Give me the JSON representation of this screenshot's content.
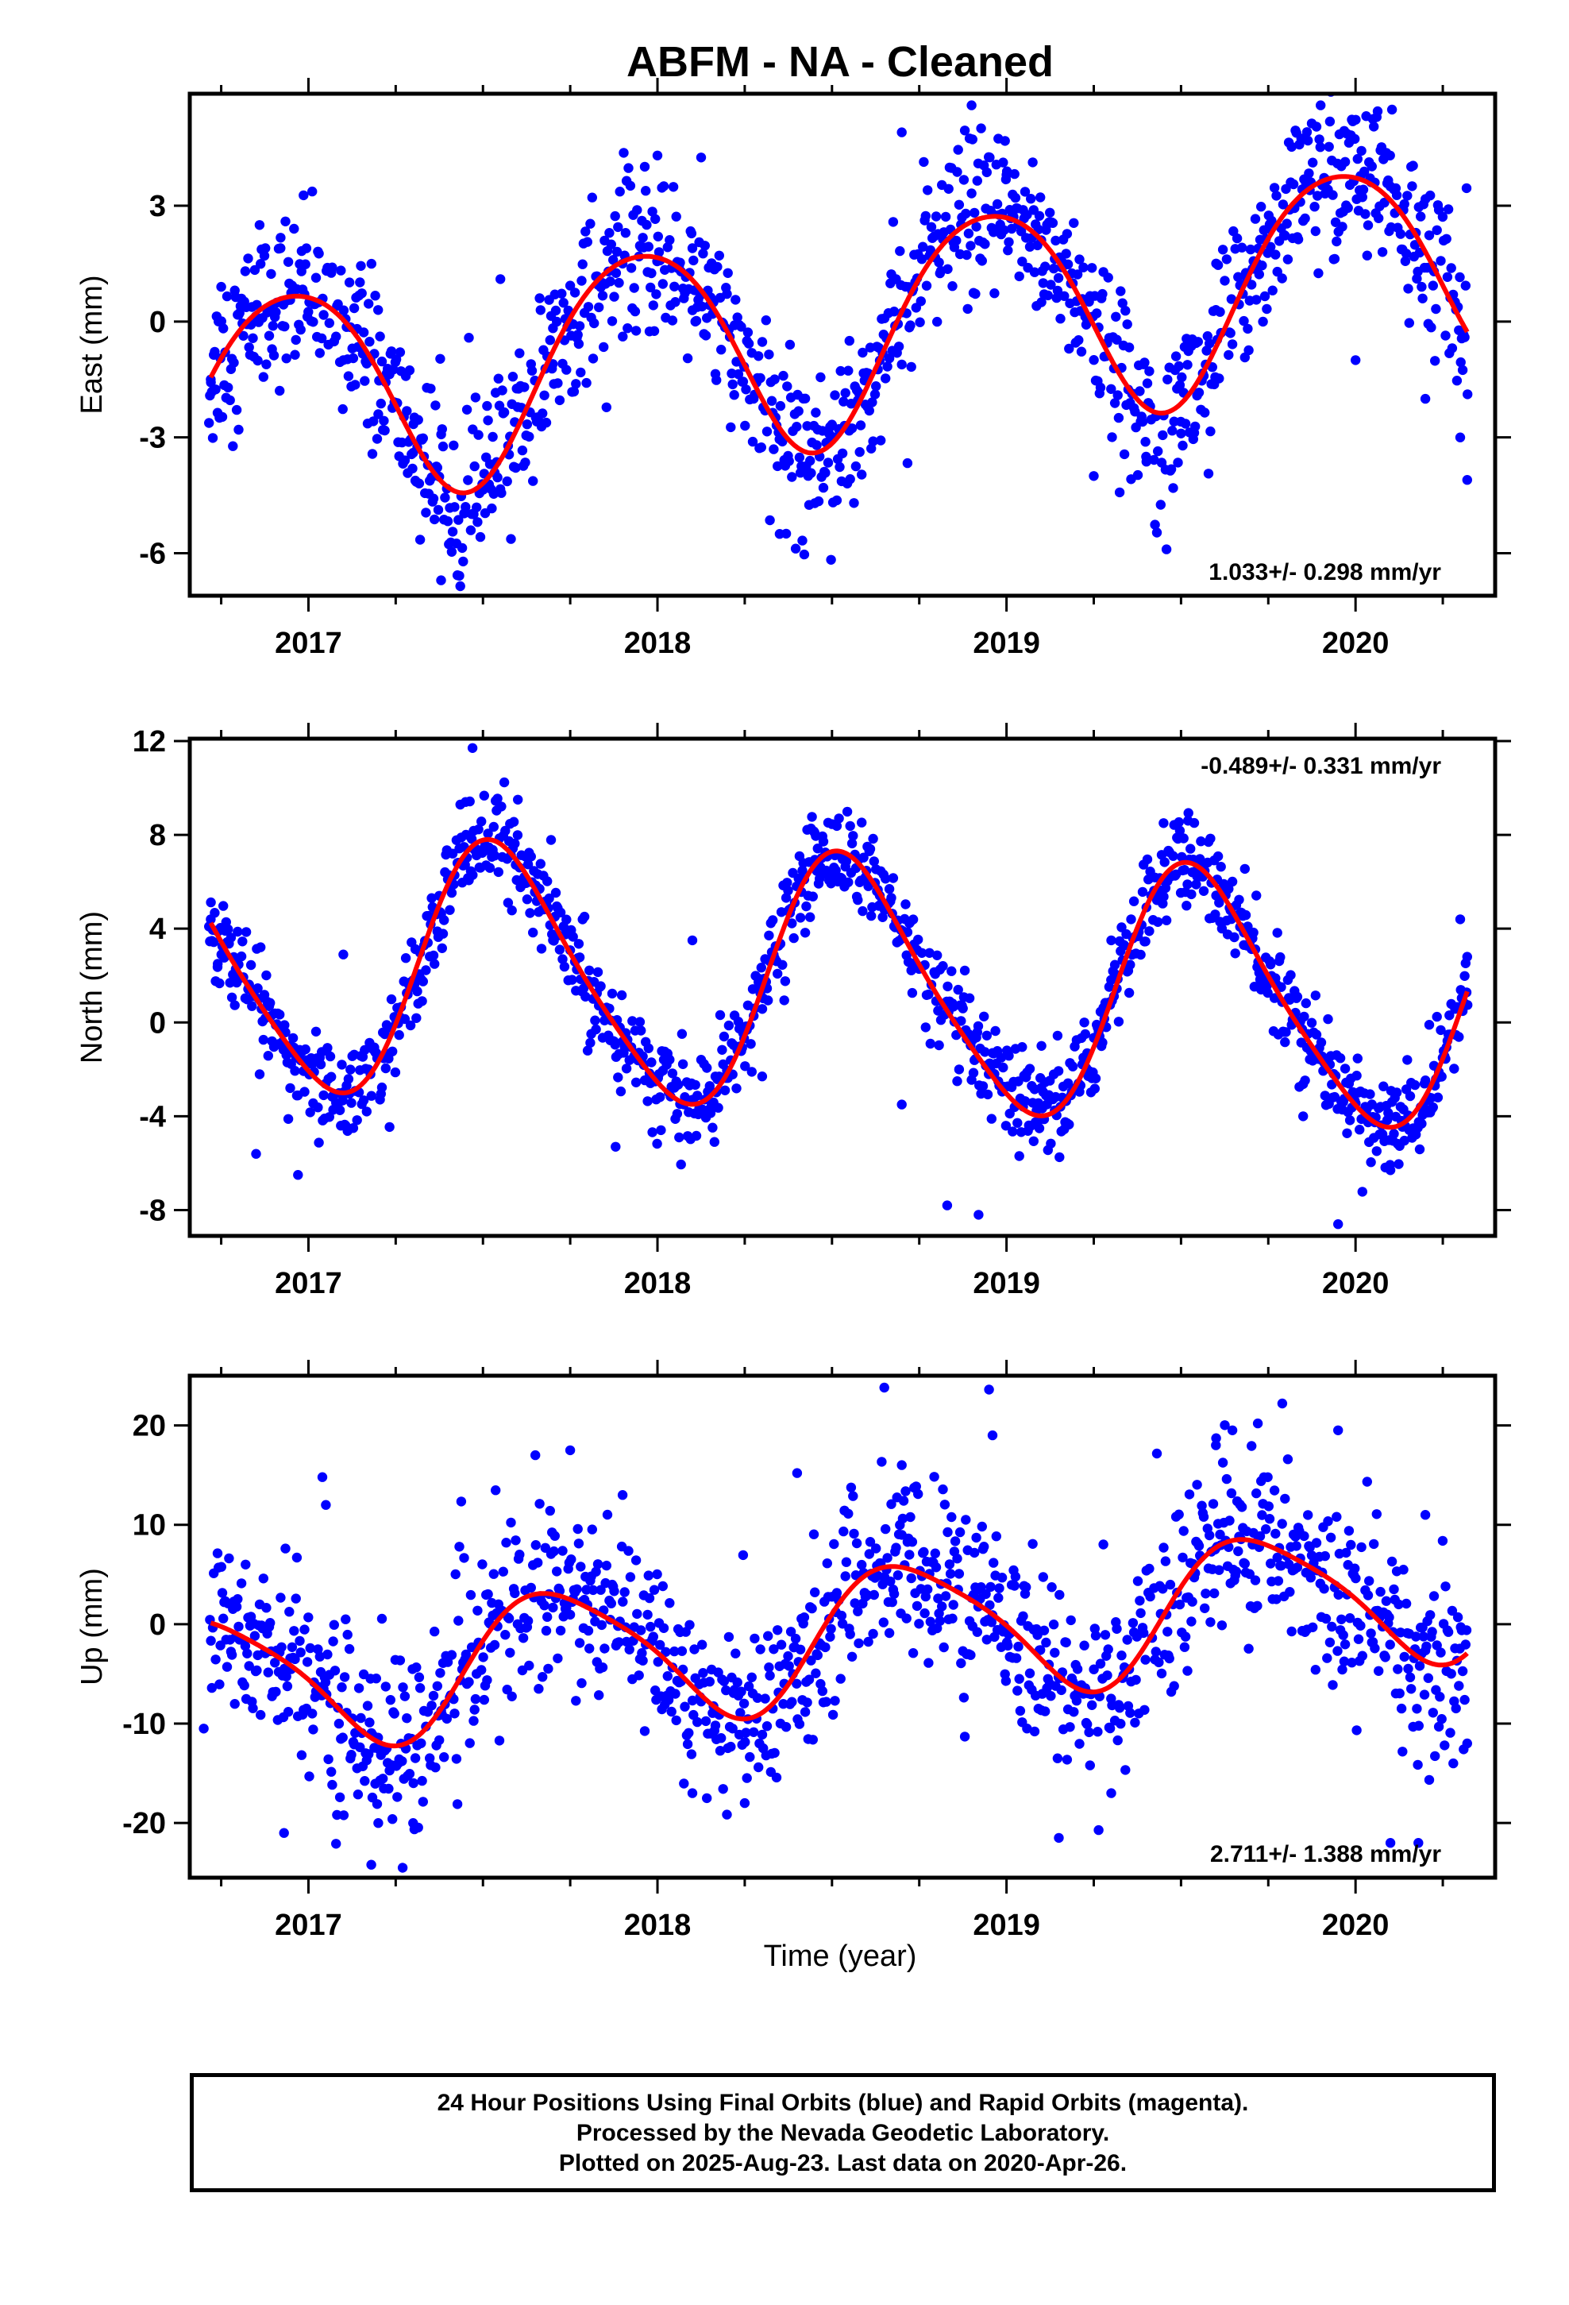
{
  "title": "ABFM  - NA - Cleaned",
  "xlabel": "Time (year)",
  "colors": {
    "points": "#0000ff",
    "fit": "#ff0000",
    "frame": "#000000"
  },
  "footer": {
    "line1": "24 Hour Positions Using Final Orbits (blue) and Rapid Orbits (magenta).",
    "line2": "Processed by the Nevada Geodetic Laboratory.",
    "line3": "Plotted on 2025-Aug-23. Last data on 2020-Apr-26."
  },
  "chart_data": [
    {
      "type": "scatter",
      "ylabel": "East (mm)",
      "rate_text": "1.033+/- 0.298 mm/yr",
      "rate_position": "bottom-right",
      "xlim": [
        2016.66,
        2020.4
      ],
      "ylim": [
        -7.1,
        5.9
      ],
      "xticks": [
        2017,
        2018,
        2019,
        2020
      ],
      "yticks": [
        -6,
        -3,
        0,
        3
      ],
      "fit": {
        "offset": -0.25,
        "trend_mm_per_yr": 1.033,
        "ref_epoch": 2018.5,
        "annual_amp": 2.8,
        "annual_peak": 2017.95,
        "semi_amp": 0.3,
        "semi_peak": 2017.2
      },
      "scatter_sd": 1.05,
      "series": [
        {
          "x": [
            2016.72,
            2016.75,
            2016.8,
            2016.86,
            2016.92,
            2016.98,
            2017.03,
            2017.1,
            2017.2,
            2017.3,
            2017.38,
            2017.45,
            2017.55,
            2017.7,
            2017.9,
            2018.0,
            2018.1,
            2018.22,
            2018.35,
            2018.42,
            2018.55,
            2018.7,
            2018.9,
            2019.0,
            2019.1,
            2019.25,
            2019.4,
            2019.5,
            2019.6,
            2019.75,
            2019.9,
            2020.0,
            2020.1,
            2020.2,
            2020.3,
            2020.32
          ],
          "y": [
            -1.5,
            0.9,
            -2.8,
            2.5,
            1.9,
            1.3,
            0.5,
            -1.0,
            -2.4,
            -3.4,
            -6.7,
            -4.8,
            1.1,
            -1.1,
            1.5,
            4.3,
            1.9,
            -1.9,
            -5.5,
            -3.8,
            -0.5,
            4.9,
            5.6,
            3.8,
            0.5,
            -4.0,
            -3.5,
            -2.9,
            0.3,
            2.4,
            5.6,
            -1.0,
            3.5,
            -2.0,
            -3.0,
            -4.1
          ]
        }
      ]
    },
    {
      "type": "scatter",
      "ylabel": "North (mm)",
      "rate_text": "-0.489+/- 0.331 mm/yr",
      "rate_position": "top-right",
      "xlim": [
        2016.66,
        2020.4
      ],
      "ylim": [
        -9.1,
        12.1
      ],
      "xticks": [
        2017,
        2018,
        2019,
        2020
      ],
      "yticks": [
        -8,
        -4,
        0,
        4,
        8,
        12
      ],
      "fit": {
        "offset": 1.6,
        "trend_mm_per_yr": -0.489,
        "ref_epoch": 2018.5,
        "annual_amp": 5.3,
        "annual_peak": 2017.55,
        "semi_amp": 0.8,
        "semi_peak": 2017.45
      },
      "scatter_sd": 1.0,
      "series": [
        {
          "x": [
            2016.72,
            2016.74,
            2016.85,
            2016.97,
            2017.1,
            2017.3,
            2017.45,
            2017.47,
            2017.6,
            2017.8,
            2017.88,
            2018.1,
            2018.3,
            2018.45,
            2018.52,
            2018.7,
            2018.83,
            2018.92,
            2019.1,
            2019.3,
            2019.45,
            2019.52,
            2019.68,
            2019.85,
            2019.95,
            2020.1,
            2020.3,
            2020.32
          ],
          "y": [
            4.4,
            2.5,
            -5.6,
            -6.5,
            2.9,
            1.8,
            9.4,
            11.7,
            9.5,
            -1.2,
            -5.3,
            3.5,
            -2.3,
            8.1,
            8.7,
            -3.5,
            -7.8,
            -8.2,
            -1.0,
            3.5,
            8.5,
            8.6,
            3.3,
            -4.0,
            -8.6,
            -6.3,
            4.4,
            2.8
          ]
        }
      ]
    },
    {
      "type": "scatter",
      "ylabel": "Up (mm)",
      "rate_text": "2.711+/- 1.388 mm/yr",
      "rate_position": "bottom-right",
      "xlim": [
        2016.66,
        2020.4
      ],
      "ylim": [
        -25.5,
        25.0
      ],
      "xticks": [
        2017,
        2018,
        2019,
        2020
      ],
      "yticks": [
        -20,
        -10,
        0,
        10,
        20
      ],
      "fit": {
        "offset": -1.2,
        "trend_mm_per_yr": 2.711,
        "ref_epoch": 2018.5,
        "annual_amp": 6.8,
        "annual_peak": 2017.72,
        "semi_amp": 1.2,
        "semi_peak": 2017.55
      },
      "scatter_sd": 4.6,
      "series": [
        {
          "x": [
            2016.7,
            2016.82,
            2016.93,
            2017.04,
            2017.05,
            2017.18,
            2017.2,
            2017.27,
            2017.3,
            2017.65,
            2017.75,
            2017.9,
            2018.1,
            2018.25,
            2018.4,
            2018.65,
            2018.7,
            2018.95,
            2018.96,
            2019.15,
            2019.3,
            2019.6,
            2019.72,
            2019.79,
            2019.95,
            2020.1,
            2020.18,
            2020.2,
            2020.28,
            2020.32
          ],
          "y": [
            -10.5,
            6.0,
            -21.0,
            14.8,
            12.0,
            -24.2,
            -20.0,
            -24.5,
            -20.0,
            17.0,
            17.5,
            13.0,
            -17.0,
            -18.0,
            15.2,
            23.8,
            16.0,
            23.6,
            19.0,
            -21.5,
            -17.0,
            18.0,
            20.2,
            22.2,
            19.5,
            -22.0,
            -22.0,
            11.0,
            -14.0,
            -12.0
          ]
        }
      ]
    }
  ]
}
